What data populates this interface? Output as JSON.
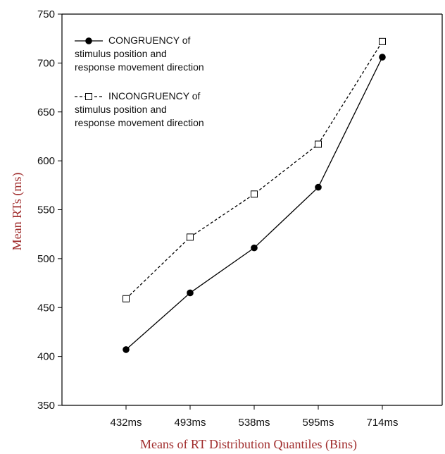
{
  "chart_data": {
    "type": "line",
    "xlabel": "Means of RT Distribution Quantiles (Bins)",
    "ylabel": "Mean RTs (ms)",
    "categories": [
      "432ms",
      "493ms",
      "538ms",
      "595ms",
      "714ms"
    ],
    "ylim": [
      350,
      750
    ],
    "yticks": [
      350,
      400,
      450,
      500,
      550,
      600,
      650,
      700,
      750
    ],
    "grid": false,
    "legend_position": "top-left",
    "series": [
      {
        "name": "CONGRUENCY of stimulus position and response movement direction",
        "legend_lines": [
          "CONGRUENCY of",
          "stimulus position and",
          "response movement direction"
        ],
        "values": [
          407,
          465,
          511,
          573,
          706
        ],
        "line_style": "solid",
        "marker": "filled-circle",
        "color": "#000000"
      },
      {
        "name": "INCONGRUENCY of stimulus position and response movement direction",
        "legend_lines": [
          "INCONGRUENCY of",
          "stimulus position and",
          "response movement direction"
        ],
        "values": [
          459,
          522,
          566,
          617,
          722
        ],
        "line_style": "dashed",
        "marker": "open-square",
        "color": "#000000"
      }
    ],
    "axis_title_color": "#a02c2c"
  }
}
